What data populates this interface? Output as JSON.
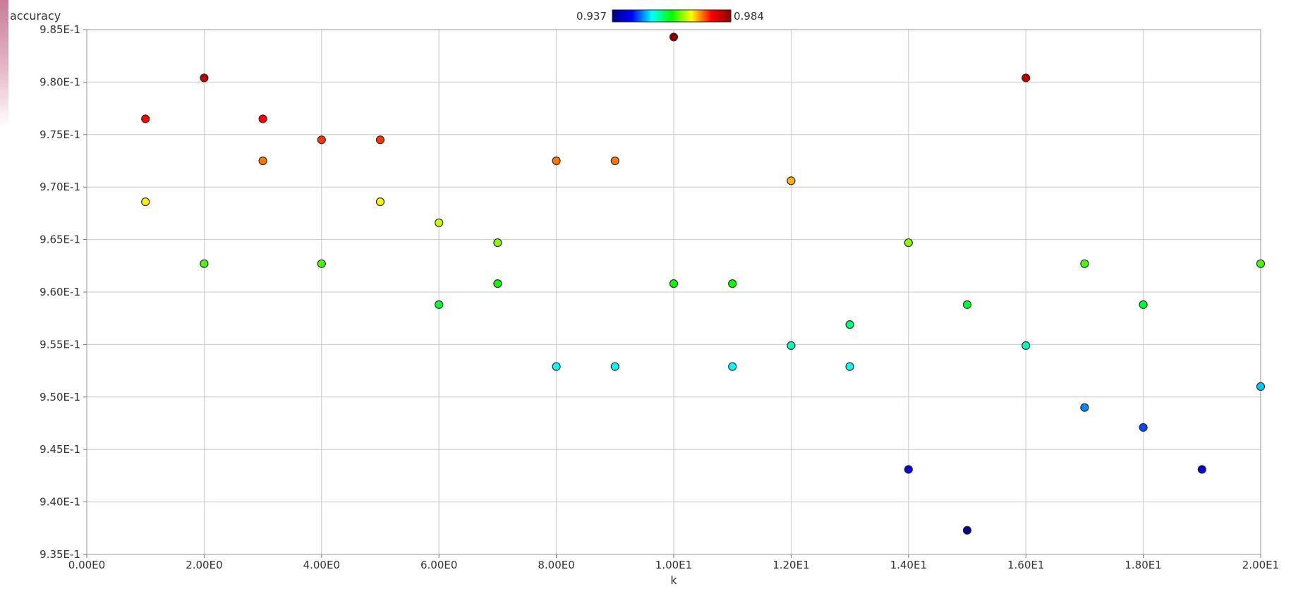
{
  "chart_data": {
    "type": "scatter",
    "title": "",
    "xlabel": "k",
    "ylabel": "accuracy",
    "xlim": [
      0,
      20
    ],
    "ylim": [
      0.935,
      0.985
    ],
    "grid": true,
    "x_ticks": [
      {
        "value": 0,
        "label": "0.00E0"
      },
      {
        "value": 2,
        "label": "2.00E0"
      },
      {
        "value": 4,
        "label": "4.00E0"
      },
      {
        "value": 6,
        "label": "6.00E0"
      },
      {
        "value": 8,
        "label": "8.00E0"
      },
      {
        "value": 10,
        "label": "1.00E1"
      },
      {
        "value": 12,
        "label": "1.20E1"
      },
      {
        "value": 14,
        "label": "1.40E1"
      },
      {
        "value": 16,
        "label": "1.60E1"
      },
      {
        "value": 18,
        "label": "1.80E1"
      },
      {
        "value": 20,
        "label": "2.00E1"
      }
    ],
    "y_ticks": [
      {
        "value": 0.935,
        "label": "9.35E-1"
      },
      {
        "value": 0.94,
        "label": "9.40E-1"
      },
      {
        "value": 0.945,
        "label": "9.45E-1"
      },
      {
        "value": 0.95,
        "label": "9.50E-1"
      },
      {
        "value": 0.955,
        "label": "9.55E-1"
      },
      {
        "value": 0.96,
        "label": "9.60E-1"
      },
      {
        "value": 0.965,
        "label": "9.65E-1"
      },
      {
        "value": 0.97,
        "label": "9.70E-1"
      },
      {
        "value": 0.975,
        "label": "9.75E-1"
      },
      {
        "value": 0.98,
        "label": "9.80E-1"
      },
      {
        "value": 0.985,
        "label": "9.85E-1"
      }
    ],
    "colorbar": {
      "min": 0.937,
      "max": 0.984,
      "min_label": "0.937",
      "max_label": "0.984",
      "placement": "top-center",
      "colors": [
        "#00008b",
        "#0000ff",
        "#00ffff",
        "#00ff00",
        "#ffff00",
        "#ff0000",
        "#8b0000"
      ]
    },
    "points": [
      {
        "x": 1,
        "y": 0.9765
      },
      {
        "x": 1,
        "y": 0.9686
      },
      {
        "x": 2,
        "y": 0.9804
      },
      {
        "x": 2,
        "y": 0.9627
      },
      {
        "x": 3,
        "y": 0.9765
      },
      {
        "x": 3,
        "y": 0.9725
      },
      {
        "x": 4,
        "y": 0.9745
      },
      {
        "x": 4,
        "y": 0.9627
      },
      {
        "x": 5,
        "y": 0.9745
      },
      {
        "x": 5,
        "y": 0.9686
      },
      {
        "x": 6,
        "y": 0.9666
      },
      {
        "x": 6,
        "y": 0.9588
      },
      {
        "x": 7,
        "y": 0.9647
      },
      {
        "x": 7,
        "y": 0.9608
      },
      {
        "x": 8,
        "y": 0.9725
      },
      {
        "x": 8,
        "y": 0.9529
      },
      {
        "x": 9,
        "y": 0.9725
      },
      {
        "x": 9,
        "y": 0.9529
      },
      {
        "x": 10,
        "y": 0.9843
      },
      {
        "x": 10,
        "y": 0.9608
      },
      {
        "x": 11,
        "y": 0.9608
      },
      {
        "x": 11,
        "y": 0.9529
      },
      {
        "x": 12,
        "y": 0.9706
      },
      {
        "x": 12,
        "y": 0.9549
      },
      {
        "x": 13,
        "y": 0.9569
      },
      {
        "x": 13,
        "y": 0.9529
      },
      {
        "x": 14,
        "y": 0.9647
      },
      {
        "x": 14,
        "y": 0.9431
      },
      {
        "x": 15,
        "y": 0.9588
      },
      {
        "x": 15,
        "y": 0.9373
      },
      {
        "x": 16,
        "y": 0.9804
      },
      {
        "x": 16,
        "y": 0.9549
      },
      {
        "x": 17,
        "y": 0.9627
      },
      {
        "x": 17,
        "y": 0.949
      },
      {
        "x": 18,
        "y": 0.9588
      },
      {
        "x": 18,
        "y": 0.9471
      },
      {
        "x": 19,
        "y": 0.9431
      },
      {
        "x": 20,
        "y": 0.9627
      },
      {
        "x": 20,
        "y": 0.951
      }
    ]
  }
}
